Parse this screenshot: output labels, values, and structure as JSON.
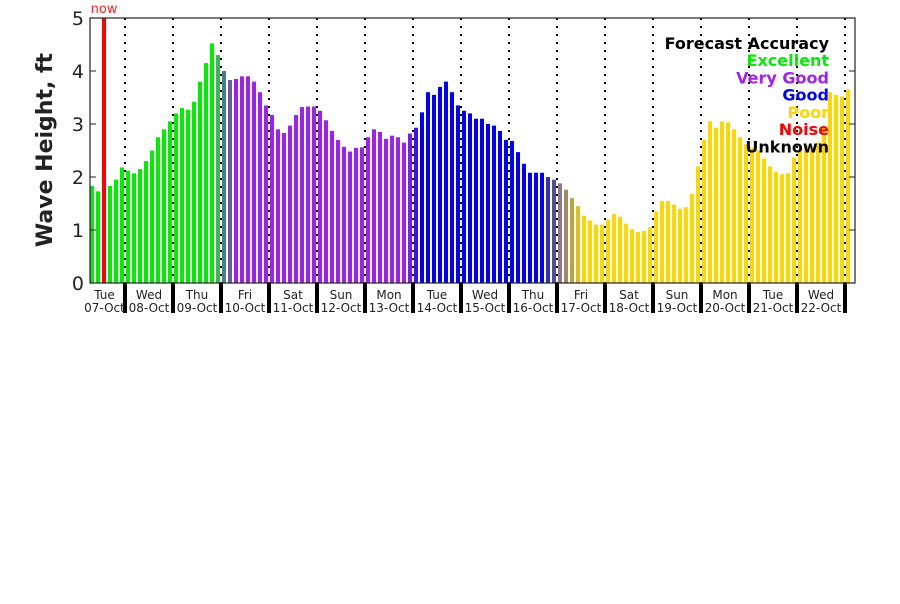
{
  "chart_data": {
    "type": "bar",
    "title": "",
    "xlabel": "",
    "ylabel": "Wave Height, ft",
    "ylim": [
      0,
      5
    ],
    "yticks": [
      "0",
      "1",
      "2",
      "3",
      "4",
      "5"
    ],
    "interval_hours": 3,
    "now_label": "now",
    "days": [
      {
        "dow": "Tue",
        "date": "07-Oct"
      },
      {
        "dow": "Wed",
        "date": "08-Oct"
      },
      {
        "dow": "Thu",
        "date": "09-Oct"
      },
      {
        "dow": "Fri",
        "date": "10-Oct"
      },
      {
        "dow": "Sat",
        "date": "11-Oct"
      },
      {
        "dow": "Sun",
        "date": "12-Oct"
      },
      {
        "dow": "Mon",
        "date": "13-Oct"
      },
      {
        "dow": "Tue",
        "date": "14-Oct"
      },
      {
        "dow": "Wed",
        "date": "15-Oct"
      },
      {
        "dow": "Thu",
        "date": "16-Oct"
      },
      {
        "dow": "Fri",
        "date": "17-Oct"
      },
      {
        "dow": "Sat",
        "date": "18-Oct"
      },
      {
        "dow": "Sun",
        "date": "19-Oct"
      },
      {
        "dow": "Mon",
        "date": "20-Oct"
      },
      {
        "dow": "Tue",
        "date": "21-Oct"
      },
      {
        "dow": "Wed",
        "date": "22-Oct"
      }
    ],
    "first_day_bars": 6,
    "values": [
      1.83,
      1.73,
      1.9,
      1.83,
      1.95,
      2.18,
      2.12,
      2.07,
      2.15,
      2.3,
      2.5,
      2.75,
      2.9,
      3.05,
      3.2,
      3.3,
      3.27,
      3.42,
      3.8,
      4.15,
      4.52,
      4.3,
      4.0,
      3.83,
      3.85,
      3.9,
      3.9,
      3.8,
      3.6,
      3.35,
      3.17,
      2.9,
      2.83,
      2.97,
      3.17,
      3.32,
      3.33,
      3.33,
      3.25,
      3.07,
      2.87,
      2.7,
      2.57,
      2.48,
      2.55,
      2.56,
      2.75,
      2.9,
      2.85,
      2.72,
      2.78,
      2.75,
      2.65,
      2.82,
      2.93,
      3.22,
      3.6,
      3.55,
      3.7,
      3.8,
      3.6,
      3.35,
      3.25,
      3.2,
      3.1,
      3.1,
      3.0,
      2.97,
      2.87,
      2.7,
      2.68,
      2.47,
      2.25,
      2.08,
      2.08,
      2.08,
      2.0,
      1.95,
      1.88,
      1.76,
      1.6,
      1.45,
      1.27,
      1.18,
      1.1,
      1.1,
      1.2,
      1.3,
      1.25,
      1.12,
      1.02,
      0.96,
      0.98,
      1.05,
      1.35,
      1.55,
      1.55,
      1.48,
      1.4,
      1.43,
      1.68,
      2.2,
      2.7,
      3.05,
      2.93,
      3.05,
      3.03,
      2.9,
      2.75,
      2.62,
      2.55,
      2.5,
      2.35,
      2.2,
      2.1,
      2.05,
      2.07,
      2.37,
      2.5,
      2.6,
      2.55,
      2.65,
      2.95,
      3.6,
      3.55,
      3.52,
      3.65
    ],
    "accuracy": [
      "E",
      "E",
      "E",
      "E",
      "E",
      "E",
      "E",
      "E",
      "E",
      "E",
      "E",
      "E",
      "E",
      "E",
      "E",
      "E",
      "E",
      "E",
      "E",
      "E",
      "E",
      "E1",
      "E2",
      "E3",
      "V",
      "V",
      "V",
      "V",
      "V",
      "V",
      "V",
      "V",
      "V",
      "V",
      "V",
      "V",
      "V",
      "V",
      "V",
      "V",
      "V",
      "V",
      "V",
      "V",
      "V",
      "V",
      "V",
      "V",
      "V",
      "V",
      "V",
      "V",
      "V",
      "V1",
      "G1",
      "G",
      "G",
      "G",
      "G",
      "G",
      "G",
      "G",
      "G",
      "G",
      "G",
      "G",
      "G",
      "G",
      "G",
      "G",
      "G",
      "G",
      "G",
      "G",
      "G",
      "G",
      "G2",
      "G3",
      "P1",
      "P2",
      "P3",
      "P4",
      "P",
      "P",
      "P",
      "P",
      "P",
      "P",
      "P",
      "P",
      "P",
      "P",
      "P",
      "P",
      "P",
      "P",
      "P",
      "P",
      "P",
      "P",
      "P",
      "P",
      "P",
      "P",
      "P",
      "P",
      "P",
      "P",
      "P",
      "P",
      "P",
      "P",
      "P",
      "P",
      "P",
      "P",
      "P",
      "P",
      "P",
      "P",
      "P",
      "P",
      "P",
      "P",
      "P",
      "P",
      "P"
    ],
    "colors": {
      "E": "#00ee00",
      "E1": "#3cb850",
      "E2": "#4a7d8a",
      "E3": "#6a5aa8",
      "V": "#a020f0",
      "V1": "#7a1cf0",
      "G": "#0000ff",
      "G1": "#3a10f8",
      "G2": "#3030c0",
      "G3": "#505098",
      "P": "#ffd700",
      "P1": "#8a7a8a",
      "P2": "#a08860",
      "P3": "#c0a040",
      "P4": "#e0c020",
      "now": "#ff0000"
    },
    "legend": {
      "title": "Forecast Accuracy",
      "placement": "top-right",
      "entries": [
        {
          "label": "Excellent",
          "color": "#00ee00"
        },
        {
          "label": "Very Good",
          "color": "#a020f0"
        },
        {
          "label": "Good",
          "color": "#0000ff"
        },
        {
          "label": "Poor",
          "color": "#ffd700"
        },
        {
          "label": "Noise",
          "color": "#ff0000"
        },
        {
          "label": "Unknown",
          "color": "#000000"
        }
      ]
    }
  }
}
